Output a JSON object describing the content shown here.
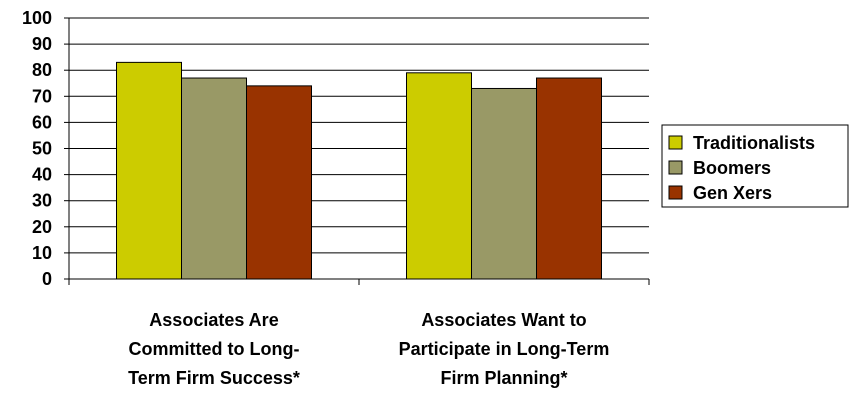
{
  "chart_data": {
    "type": "bar",
    "categories": [
      [
        "Associates Are",
        "Committed to Long-",
        "Term Firm Success*"
      ],
      [
        "Associates Want to",
        "Participate in Long-Term",
        "Firm Planning*"
      ]
    ],
    "series": [
      {
        "name": "Traditionalists",
        "color": "#cccc00",
        "values": [
          83,
          79
        ]
      },
      {
        "name": "Boomers",
        "color": "#999966",
        "values": [
          77,
          73
        ]
      },
      {
        "name": "Gen Xers",
        "color": "#993300",
        "values": [
          74,
          77
        ]
      }
    ],
    "ylim": [
      0,
      100
    ],
    "yticks": [
      0,
      10,
      20,
      30,
      40,
      50,
      60,
      70,
      80,
      90,
      100
    ],
    "grid": true,
    "legend_position": "right"
  }
}
